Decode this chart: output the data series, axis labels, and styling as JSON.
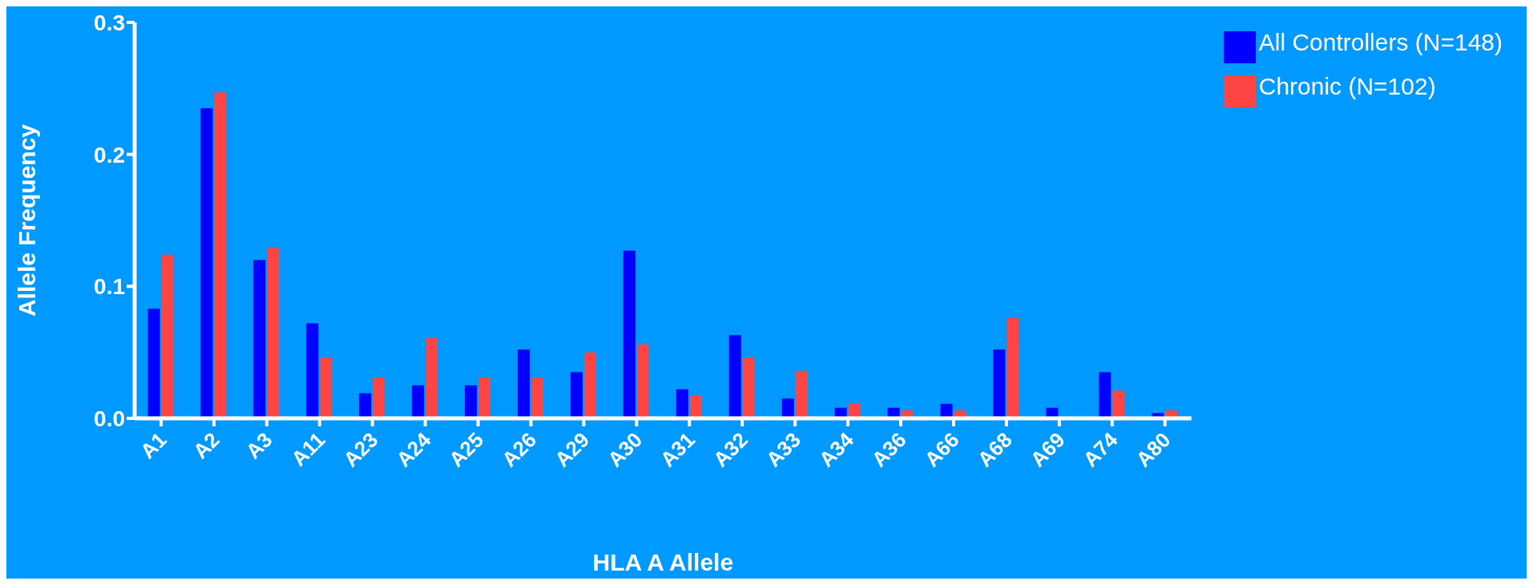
{
  "chart_data": {
    "type": "bar",
    "xlabel": "HLA A Allele",
    "ylabel": "Allele Frequency",
    "categories": [
      "A1",
      "A2",
      "A3",
      "A11",
      "A23",
      "A24",
      "A25",
      "A26",
      "A29",
      "A30",
      "A31",
      "A32",
      "A33",
      "A34",
      "A36",
      "A66",
      "A68",
      "A69",
      "A74",
      "A80"
    ],
    "series": [
      {
        "name": "All Controllers (N=148)",
        "color": "#0000ff",
        "values": [
          0.083,
          0.235,
          0.12,
          0.072,
          0.019,
          0.025,
          0.025,
          0.052,
          0.035,
          0.127,
          0.022,
          0.063,
          0.015,
          0.008,
          0.008,
          0.011,
          0.052,
          0.008,
          0.035,
          0.004
        ]
      },
      {
        "name": "Chronic (N=102)",
        "color": "#ff4444",
        "values": [
          0.124,
          0.247,
          0.129,
          0.046,
          0.031,
          0.061,
          0.031,
          0.031,
          0.05,
          0.056,
          0.017,
          0.046,
          0.036,
          0.011,
          0.006,
          0.006,
          0.076,
          0,
          0.021,
          0.006
        ]
      }
    ],
    "ylim": [
      0,
      0.3
    ],
    "yticks": [
      {
        "value": 0,
        "label": "0.0"
      },
      0.1,
      0.2,
      0.3
    ],
    "grid": false,
    "legend": "top right"
  }
}
